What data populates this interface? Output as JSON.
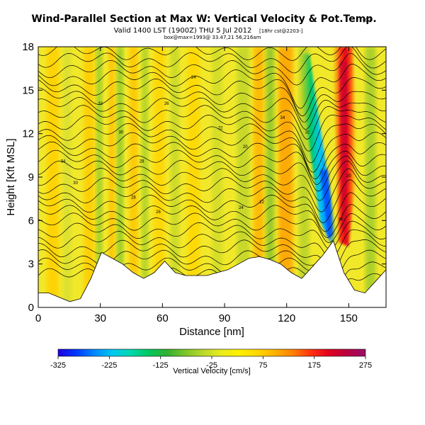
{
  "title": {
    "main": "Wind-Parallel Section at Max W: Vertical Velocity & Pot.Temp.",
    "copyright": "(C)",
    "valid": "Valid 1400 LST (1900Z) THU 5 Jul 2012",
    "valid_suffix": "[18hr cst@2203-]",
    "loc": "box@max=1993@ 33.47,21 56,216am"
  },
  "chart_data": {
    "type": "heatmap",
    "xlabel": "Distance [nm]",
    "ylabel": "Height [Kft MSL]",
    "xlim": [
      0,
      168
    ],
    "ylim": [
      0,
      18
    ],
    "xticks": [
      0,
      30,
      60,
      90,
      120,
      150
    ],
    "yticks": [
      0,
      3,
      6,
      9,
      12,
      15,
      18
    ],
    "colorbar": {
      "label": "Vertical Velocity [cm/s]",
      "range": [
        -325,
        275
      ],
      "ticks": [
        "-325",
        "-225",
        "-125",
        "-25",
        "75",
        "175",
        "275"
      ],
      "colors": [
        "#1f00e0",
        "#0038ff",
        "#0088ff",
        "#00c8f0",
        "#00d8b0",
        "#00c860",
        "#30b030",
        "#7cc428",
        "#b8d82a",
        "#e8ec1e",
        "#fff000",
        "#ffd800",
        "#ffb000",
        "#ff8000",
        "#ff3010",
        "#e00020",
        "#b80040",
        "#98106a"
      ]
    },
    "w_cores": [
      {
        "x": 7,
        "z": 9,
        "w": 40
      },
      {
        "x": 22,
        "z": 11,
        "w": 30
      },
      {
        "x": 33,
        "z": 12,
        "w": 45
      },
      {
        "x": 42,
        "z": 10,
        "w": 30
      },
      {
        "x": 58,
        "z": 13,
        "w": 20
      },
      {
        "x": 78,
        "z": 12,
        "w": 15
      },
      {
        "x": 108,
        "z": 14,
        "w": 60
      },
      {
        "x": 120,
        "z": 15,
        "w": 75
      },
      {
        "x": 148,
        "z": 10,
        "w": 245
      },
      {
        "x": 140,
        "z": 8,
        "w": -290
      }
    ],
    "isentrope_labels": [
      "34",
      "32",
      "30",
      "28",
      "26",
      "24",
      "22",
      "20"
    ],
    "terrain_z": [
      1.0,
      1.0,
      0.7,
      0.4,
      0.6,
      2.0,
      3.8,
      3.4,
      3.0,
      2.4,
      2.0,
      2.4,
      3.2,
      2.4,
      2.2,
      2.2,
      2.2,
      2.4,
      2.6,
      3.0,
      3.4,
      3.5,
      3.3,
      3.0,
      2.4,
      2.0,
      2.8,
      3.6,
      4.6,
      2.4,
      1.2,
      1.0,
      1.8,
      2.6
    ]
  }
}
